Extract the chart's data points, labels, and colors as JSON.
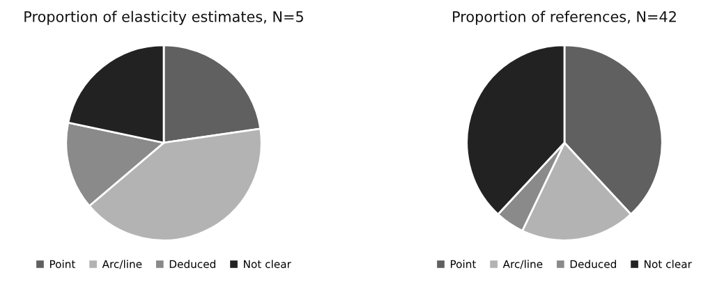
{
  "chart_data": [
    {
      "type": "pie",
      "title": "Proportion of elasticity estimates, N=5",
      "categories": [
        "Point",
        "Arc/line",
        "Deduced",
        "Not clear"
      ],
      "values": [
        22.7,
        41.1,
        14.5,
        21.7
      ],
      "colors": [
        "#606060",
        "#b3b3b3",
        "#8a8a8a",
        "#222222"
      ],
      "legend": "bottom"
    },
    {
      "type": "pie",
      "title": "Proportion of references, N=42",
      "categories": [
        "Point",
        "Arc/line",
        "Deduced",
        "Not clear"
      ],
      "values": [
        38.1,
        19.0,
        4.8,
        38.1
      ],
      "colors": [
        "#606060",
        "#b3b3b3",
        "#8a8a8a",
        "#222222"
      ],
      "legend": "bottom"
    }
  ]
}
